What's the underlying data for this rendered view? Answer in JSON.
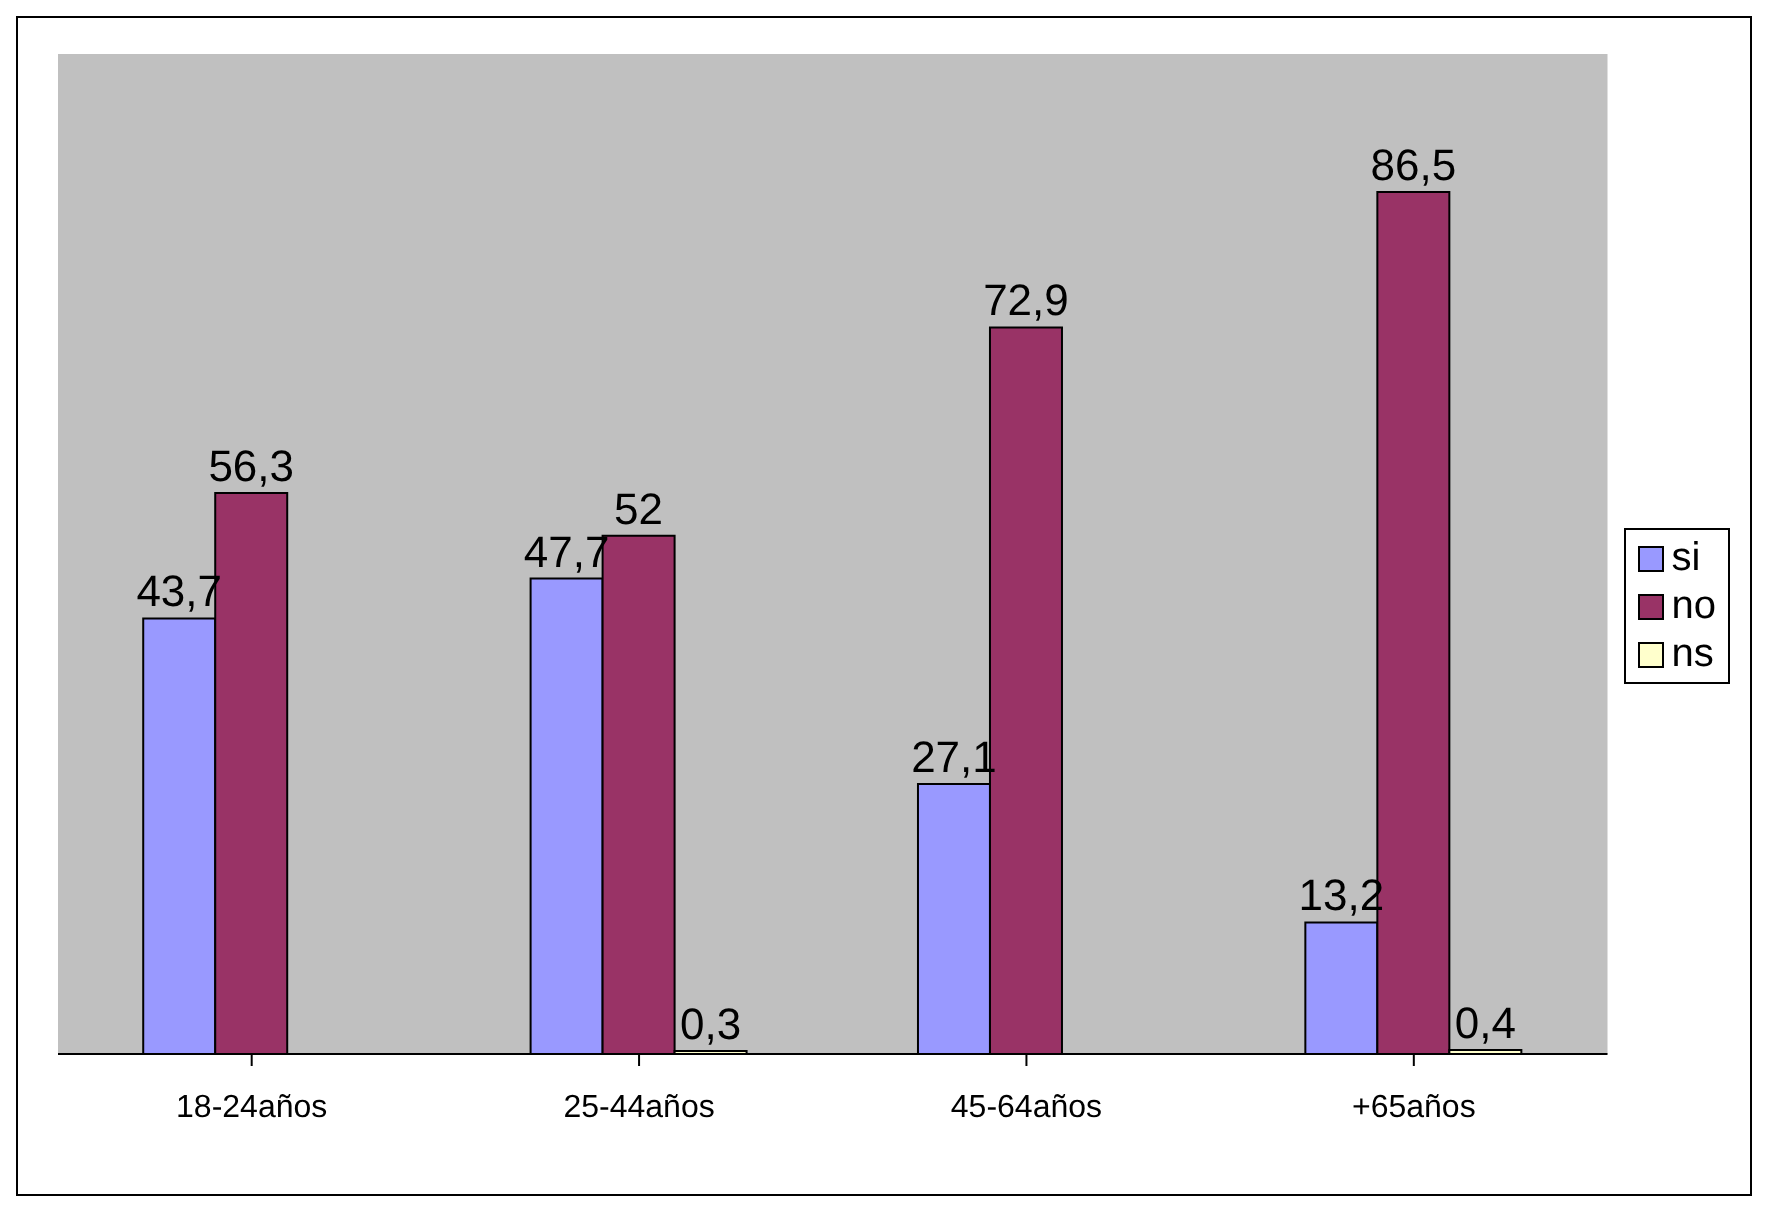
{
  "chart_data": {
    "type": "bar",
    "categories": [
      "18-24años",
      "25-44años",
      "45-64años",
      "+65años"
    ],
    "series": [
      {
        "name": "si",
        "color": "#9999ff",
        "values": [
          43.7,
          47.7,
          27.1,
          13.2
        ],
        "value_labels": [
          "43,7",
          "47,7",
          "27,1",
          "13,2"
        ]
      },
      {
        "name": "no",
        "color": "#993366",
        "values": [
          56.3,
          52,
          72.9,
          86.5
        ],
        "value_labels": [
          "56,3",
          "52",
          "72,9",
          "86,5"
        ]
      },
      {
        "name": "ns",
        "color": "#ffffcc",
        "values": [
          null,
          0.3,
          null,
          0.4
        ],
        "value_labels": [
          null,
          "0,3",
          null,
          "0,4"
        ]
      }
    ],
    "grid": false,
    "legend": "right"
  }
}
